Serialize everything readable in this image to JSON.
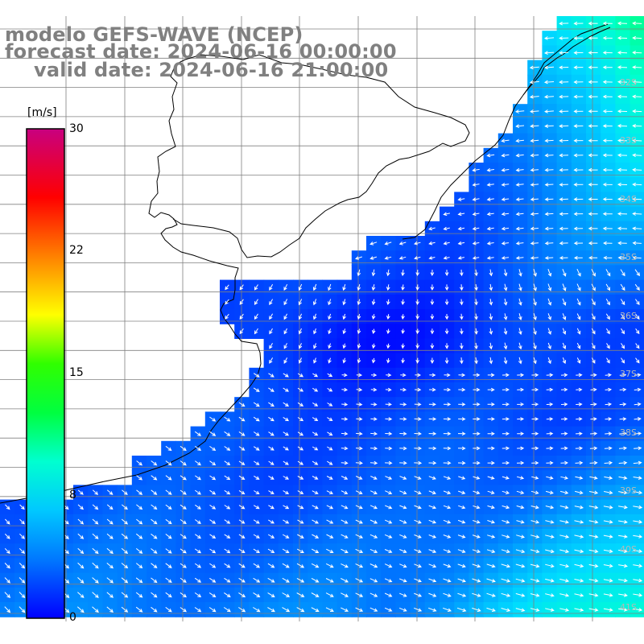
{
  "title": {
    "model": "modelo GEFS-WAVE (NCEP)",
    "forecast": "forecast date: 2024-06-16 00:00:00",
    "valid": "valid date: 2024-06-16 21:00:00"
  },
  "colorbar": {
    "unit": "[m/s]",
    "ticks": [
      "30",
      "22",
      "15",
      "8",
      "0"
    ],
    "colors": [
      "#0000ff",
      "#0078ff",
      "#00c8ff",
      "#00ffd0",
      "#00ff00",
      "#ffff00",
      "#ff8000",
      "#ff0000",
      "#c80080"
    ]
  },
  "map": {
    "land_color": "#ffffff",
    "grid_color": "#808080",
    "coast_color": "#000000",
    "arrow_color": "#ffffff",
    "lat_labels": [
      "32S",
      "33S",
      "34S",
      "35S",
      "36S",
      "37S",
      "38S",
      "39S",
      "40S",
      "41S"
    ]
  }
}
